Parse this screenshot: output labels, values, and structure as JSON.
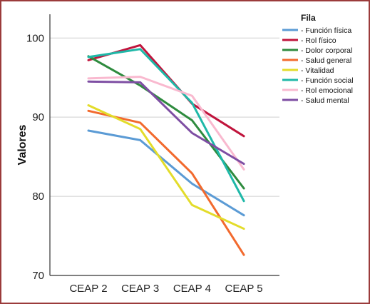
{
  "chart_data": {
    "type": "line",
    "categories": [
      "CEAP 2",
      "CEAP 3",
      "CEAP 4",
      "CEAP 5"
    ],
    "ylabel": "Valores",
    "xlabel": "",
    "ylim": [
      70,
      103
    ],
    "yticks": [
      70,
      80,
      90,
      100
    ],
    "grid": true,
    "legend_title": "Fila",
    "legend_position": "top-right",
    "series": [
      {
        "name": "Función física",
        "color": "#5b9bd5",
        "values": [
          88.3,
          87.1,
          81.6,
          77.6
        ]
      },
      {
        "name": "Rol físico",
        "color": "#c0143c",
        "values": [
          97.2,
          99.1,
          91.7,
          87.6
        ]
      },
      {
        "name": "Dolor corporal",
        "color": "#2e8b3e",
        "values": [
          97.7,
          94.0,
          89.6,
          81.0
        ]
      },
      {
        "name": "Salud general",
        "color": "#f26a2e",
        "values": [
          90.8,
          89.3,
          82.9,
          72.6
        ]
      },
      {
        "name": "Vitalidad",
        "color": "#e3dc2a",
        "values": [
          91.5,
          88.5,
          78.9,
          75.9
        ]
      },
      {
        "name": "Función social",
        "color": "#1fb8a8",
        "values": [
          97.6,
          98.6,
          91.8,
          79.4
        ]
      },
      {
        "name": "Rol emocional",
        "color": "#f9b9cf",
        "values": [
          94.9,
          95.1,
          92.7,
          83.4
        ]
      },
      {
        "name": "Salud mental",
        "color": "#7e4ea3",
        "values": [
          94.5,
          94.4,
          88.0,
          84.1
        ]
      }
    ]
  }
}
